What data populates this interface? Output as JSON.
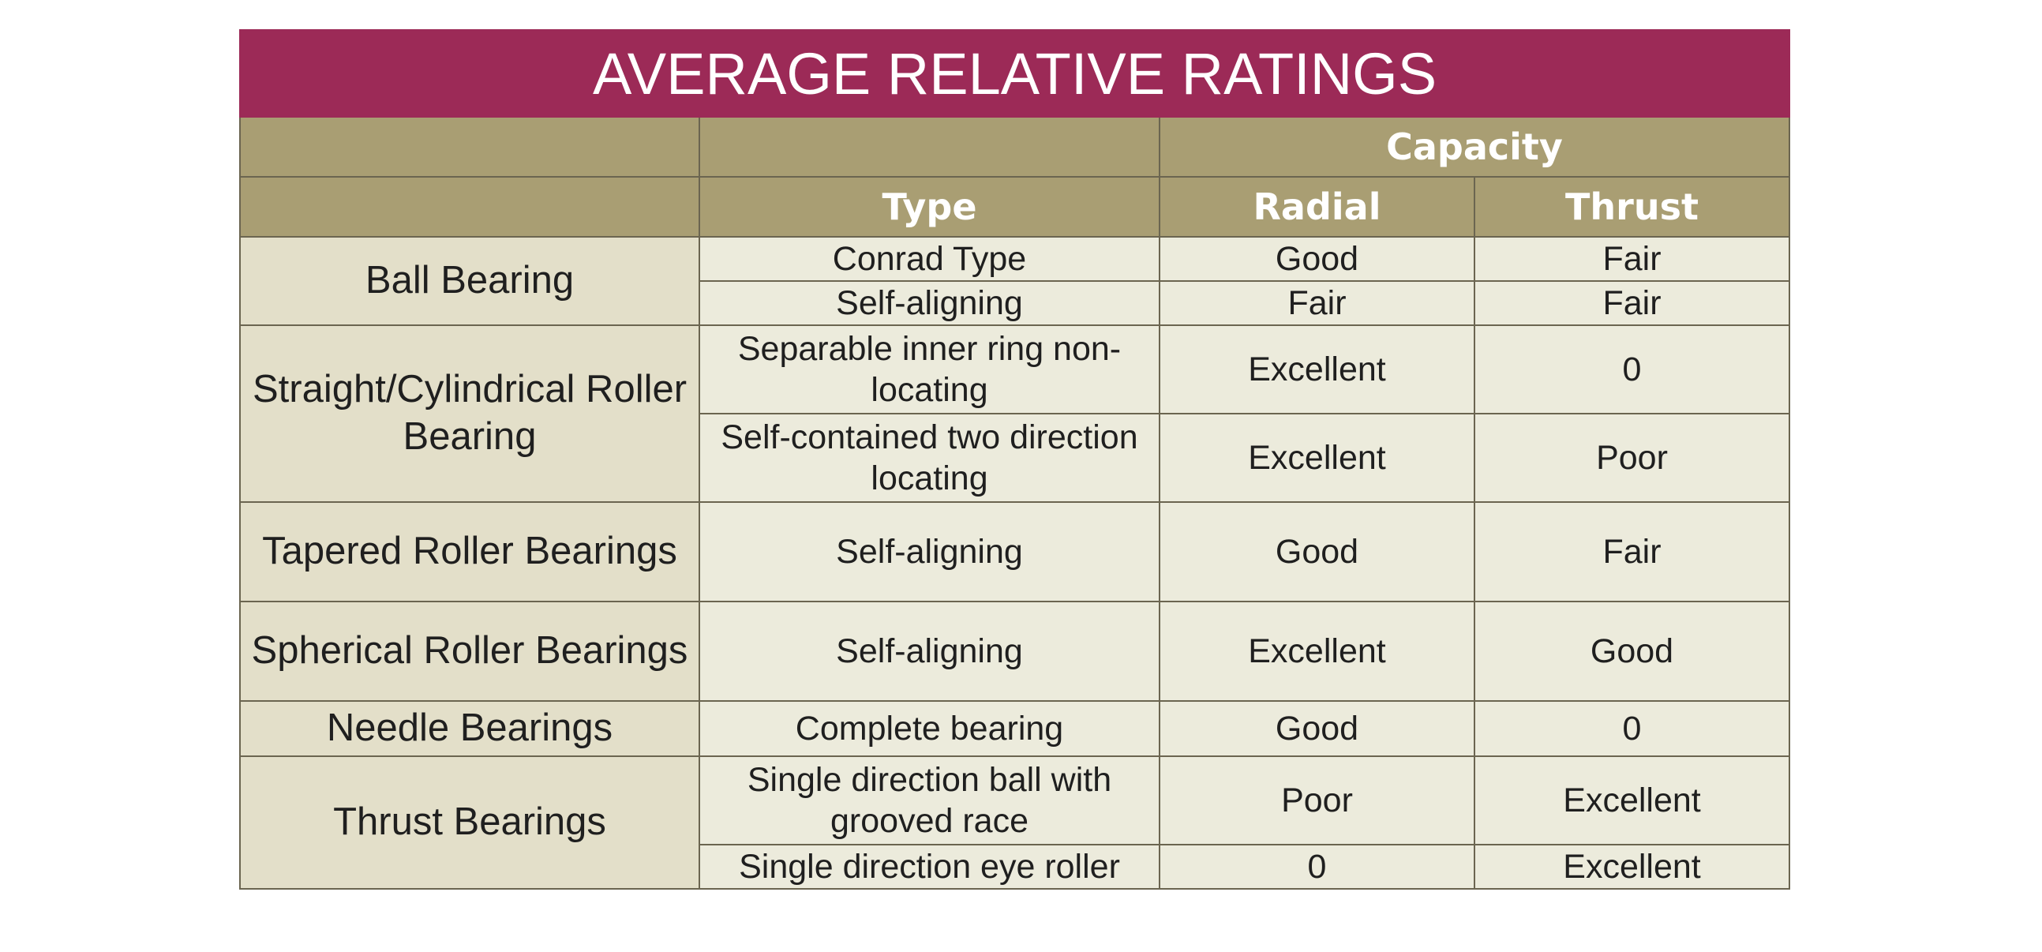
{
  "title": "AVERAGE RELATIVE RATINGS",
  "headers": {
    "group_label": "Capacity",
    "type_label": "Type",
    "radial_label": "Radial",
    "thrust_label": "Thrust"
  },
  "groups": [
    {
      "bearing": "Ball Bearing",
      "rows": [
        {
          "type": "Conrad Type",
          "radial": "Good",
          "thrust": "Fair"
        },
        {
          "type": "Self-aligning",
          "radial": "Fair",
          "thrust": "Fair"
        }
      ]
    },
    {
      "bearing": "Straight/Cylindrical Roller Bearing",
      "rows": [
        {
          "type": "Separable inner ring non-locating",
          "radial": "Excellent",
          "thrust": "0"
        },
        {
          "type": "Self-contained two direction locating",
          "radial": "Excellent",
          "thrust": "Poor"
        }
      ]
    },
    {
      "bearing": "Tapered Roller Bearings",
      "rows": [
        {
          "type": "Self-aligning",
          "radial": "Good",
          "thrust": "Fair"
        }
      ]
    },
    {
      "bearing": "Spherical Roller Bearings",
      "rows": [
        {
          "type": "Self-aligning",
          "radial": "Excellent",
          "thrust": "Good"
        }
      ]
    },
    {
      "bearing": "Needle Bearings",
      "rows": [
        {
          "type": "Complete bearing",
          "radial": "Good",
          "thrust": "0"
        }
      ]
    },
    {
      "bearing": "Thrust Bearings",
      "rows": [
        {
          "type": "Single direction ball with grooved race",
          "radial": "Poor",
          "thrust": "Excellent"
        },
        {
          "type": "Single direction eye roller",
          "radial": "0",
          "thrust": "Excellent"
        }
      ]
    }
  ]
}
